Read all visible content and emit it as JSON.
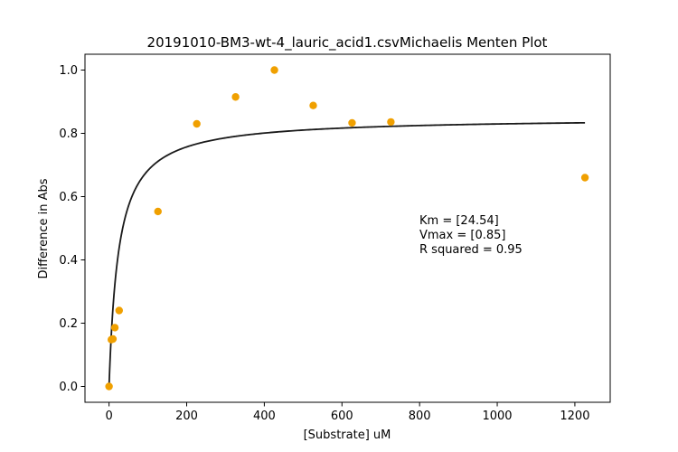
{
  "chart_data": {
    "type": "scatter",
    "title": "20191010-BM3-wt-4_lauric_acid1.csvMichaelis Menten Plot",
    "xlabel": "[Substrate] uM",
    "ylabel": "Difference in Abs",
    "xlim": [
      -62,
      1291
    ],
    "ylim": [
      -0.05,
      1.05
    ],
    "x_ticks": [
      0,
      200,
      400,
      600,
      800,
      1000,
      1200
    ],
    "y_ticks": [
      0.0,
      0.2,
      0.4,
      0.6,
      0.8,
      1.0
    ],
    "x_tick_labels": [
      "0",
      "200",
      "400",
      "600",
      "800",
      "1000",
      "1200"
    ],
    "y_tick_labels": [
      "0.0",
      "0.2",
      "0.4",
      "0.6",
      "0.8",
      "1.0"
    ],
    "grid": false,
    "points_color": "#f0a000",
    "points": [
      {
        "x": 0,
        "y": 0.0
      },
      {
        "x": 6,
        "y": 0.148
      },
      {
        "x": 10,
        "y": 0.15
      },
      {
        "x": 15,
        "y": 0.186
      },
      {
        "x": 26,
        "y": 0.24
      },
      {
        "x": 126,
        "y": 0.553
      },
      {
        "x": 226,
        "y": 0.83
      },
      {
        "x": 326,
        "y": 0.915
      },
      {
        "x": 426,
        "y": 1.0
      },
      {
        "x": 526,
        "y": 0.888
      },
      {
        "x": 626,
        "y": 0.833
      },
      {
        "x": 726,
        "y": 0.836
      },
      {
        "x": 1226,
        "y": 0.66
      }
    ],
    "fit_curve": {
      "model": "michaelis-menten",
      "km": 24.54,
      "vmax": 0.85,
      "x_range": [
        0,
        1226
      ],
      "color": "#1a1a1a"
    },
    "annotation_lines": [
      "Km = [24.54]",
      "Vmax = [0.85]",
      "R squared = 0.95"
    ]
  }
}
